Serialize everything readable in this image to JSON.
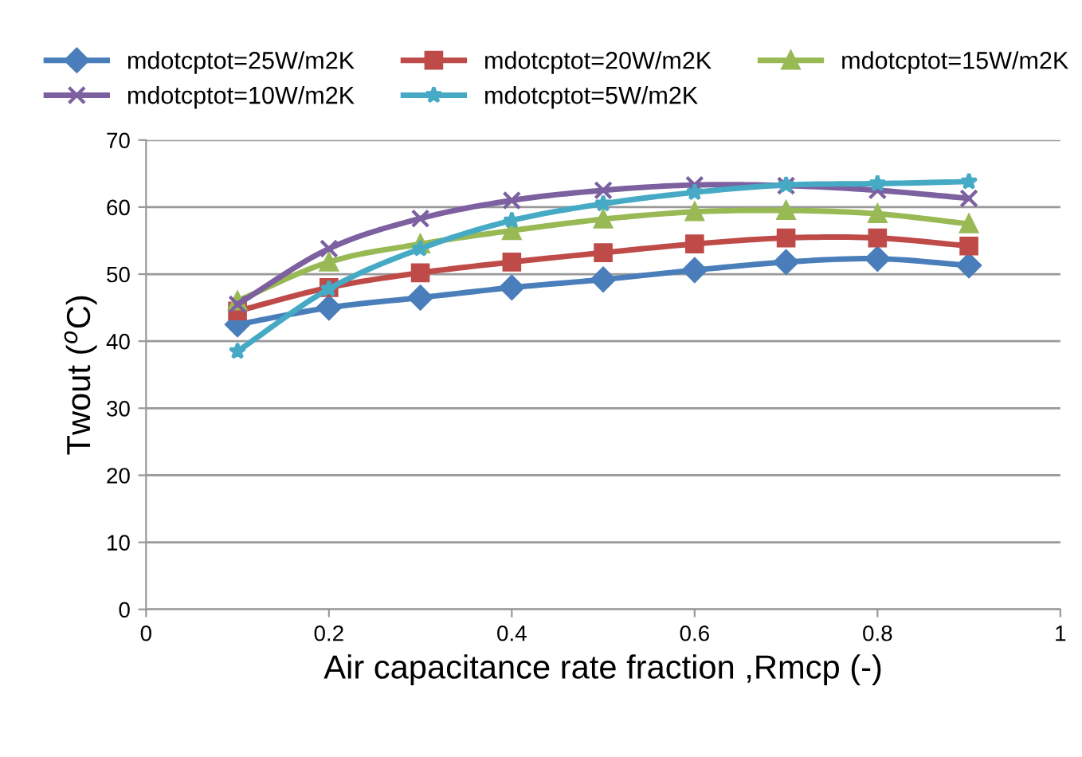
{
  "chart_data": {
    "type": "line",
    "xlabel": "Air capacitance rate fraction ,Rmcp (-)",
    "ylabel": "Twout ($^{o}$C)",
    "x": [
      0.1,
      0.2,
      0.3,
      0.4,
      0.5,
      0.6,
      0.7,
      0.8,
      0.9
    ],
    "series": [
      {
        "name": "mdotcptot=25W/m2K",
        "color": "#4a7ebb",
        "marker": "diamond",
        "values": [
          42.5,
          45,
          46.5,
          48,
          49.2,
          50.6,
          51.8,
          52.3,
          51.3
        ]
      },
      {
        "name": "mdotcptot=20W/m2K",
        "color": "#be4b48",
        "marker": "square",
        "values": [
          44.5,
          48,
          50.2,
          51.8,
          53.2,
          54.5,
          55.4,
          55.4,
          54.2
        ]
      },
      {
        "name": "mdotcptot=15W/m2K",
        "color": "#98b954",
        "marker": "triangle",
        "values": [
          46,
          51.8,
          54.5,
          56.5,
          58.2,
          59.3,
          59.5,
          59,
          57.5
        ]
      },
      {
        "name": "mdotcptot=10W/m2K",
        "color": "#7d60a0",
        "marker": "cross",
        "values": [
          45.5,
          53.8,
          58.3,
          61,
          62.5,
          63.3,
          63.2,
          62.5,
          61.3
        ]
      },
      {
        "name": "mdotcptot=5W/m2K",
        "color": "#46aac5",
        "marker": "star",
        "values": [
          38.5,
          47.8,
          53.8,
          58,
          60.5,
          62.2,
          63.3,
          63.5,
          63.8
        ]
      }
    ],
    "xlim": [
      0,
      1
    ],
    "xticks": [
      0,
      0.2,
      0.4,
      0.6,
      0.8,
      1
    ],
    "ylim": [
      0,
      70
    ],
    "yticks": [
      0,
      10,
      20,
      30,
      40,
      50,
      60,
      70
    ],
    "grid": "y",
    "legend": "top",
    "line_style": "solid"
  }
}
